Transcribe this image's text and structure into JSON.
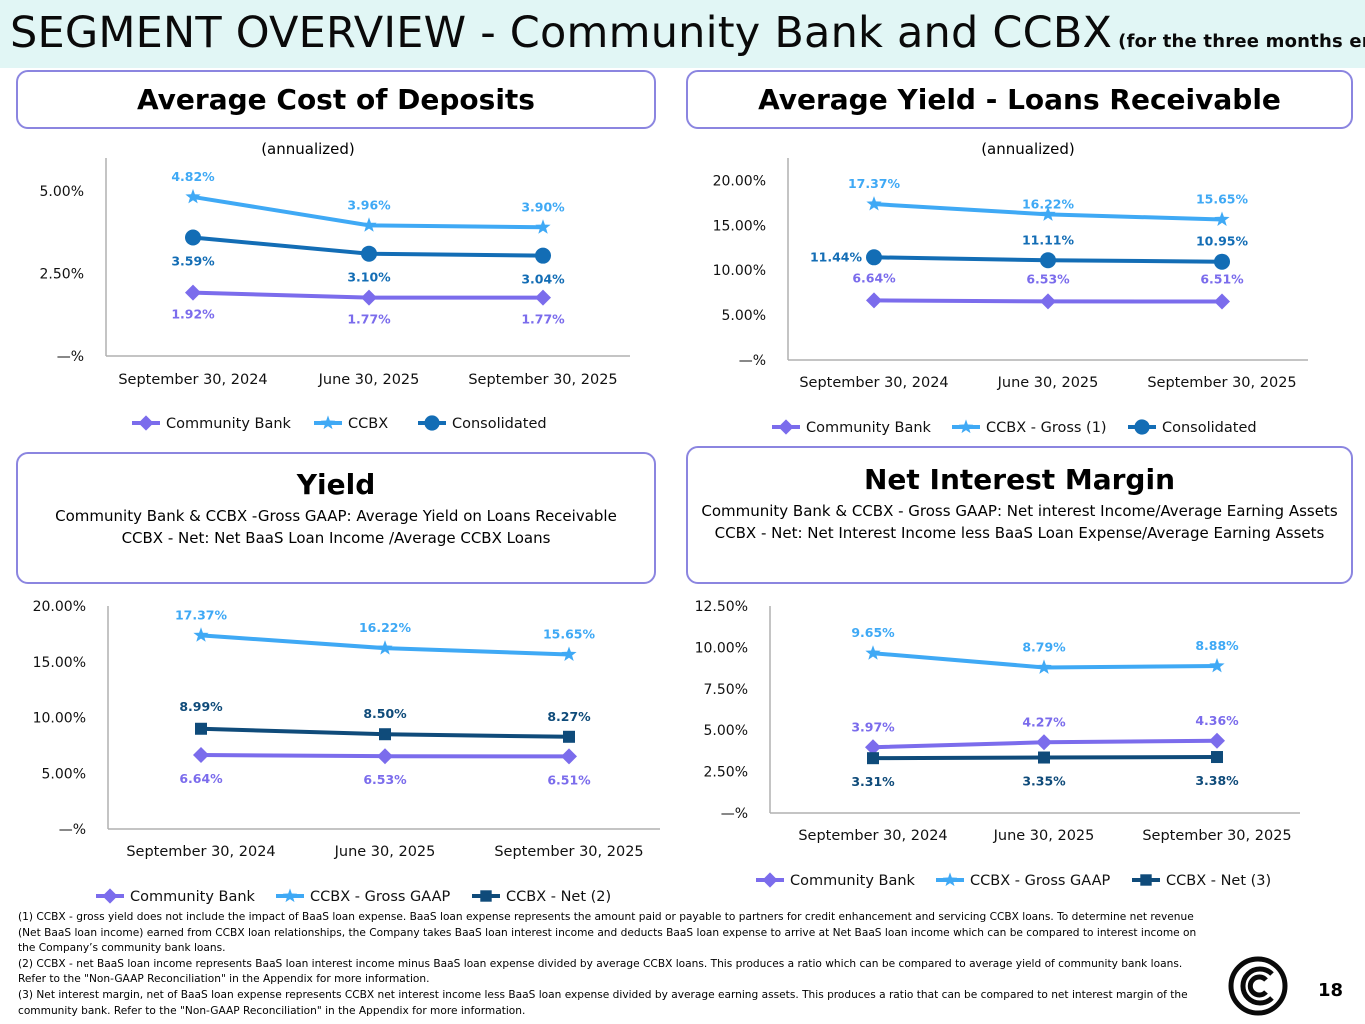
{
  "page": {
    "title": "SEGMENT OVERVIEW - Community Bank and CCBX",
    "subtitle": "(for the three months ended)",
    "page_number": "18"
  },
  "panels": {
    "deposits": {
      "title": "Average Cost of Deposits",
      "note": "(annualized)"
    },
    "loans": {
      "title": "Average Yield - Loans Receivable",
      "note": "(annualized)"
    },
    "yield": {
      "title": "Yield",
      "line1": "Community Bank & CCBX -Gross GAAP:  Average Yield on Loans Receivable",
      "line2": "CCBX - Net:  Net BaaS Loan Income /Average CCBX Loans"
    },
    "nim": {
      "title": "Net Interest Margin",
      "line1": "Community Bank & CCBX - Gross GAAP: Net interest Income/Average Earning Assets",
      "line2": "CCBX - Net:  Net Interest Income less BaaS Loan Expense/Average Earning Assets"
    }
  },
  "colors": {
    "purple": "#7b6cec",
    "lightblue": "#3fa9f5",
    "darkblue": "#136db5",
    "navy": "#0f4b7a",
    "box_border": "#8b85e0",
    "header_bg": "#e1f6f5"
  },
  "chart_data": [
    {
      "id": "deposits",
      "type": "line",
      "categories": [
        "September 30, 2024",
        "June 30, 2025",
        "September 30, 2025"
      ],
      "ylim": [
        0,
        6.0
      ],
      "yticks": [
        0,
        2.5,
        5.0
      ],
      "ytick_labels": [
        "—%",
        "2.50%",
        "5.00%"
      ],
      "series": [
        {
          "name": "Community Bank",
          "marker": "diamond",
          "color": "#7b6cec",
          "values": [
            1.92,
            1.77,
            1.77
          ],
          "labels": [
            "1.92%",
            "1.77%",
            "1.77%"
          ]
        },
        {
          "name": "CCBX",
          "marker": "star",
          "color": "#3fa9f5",
          "values": [
            4.82,
            3.96,
            3.9
          ],
          "labels": [
            "4.82%",
            "3.96%",
            "3.90%"
          ]
        },
        {
          "name": "Consolidated",
          "marker": "circle",
          "color": "#136db5",
          "values": [
            3.59,
            3.1,
            3.04
          ],
          "labels": [
            "3.59%",
            "3.10%",
            "3.04%"
          ]
        }
      ]
    },
    {
      "id": "loans",
      "type": "line",
      "categories": [
        "September 30, 2024",
        "June 30, 2025",
        "September 30, 2025"
      ],
      "ylim": [
        0,
        22.5
      ],
      "yticks": [
        0,
        5,
        10,
        15,
        20
      ],
      "ytick_labels": [
        "—%",
        "5.00%",
        "10.00%",
        "15.00%",
        "20.00%"
      ],
      "series": [
        {
          "name": "Community Bank",
          "marker": "diamond",
          "color": "#7b6cec",
          "values": [
            6.64,
            6.53,
            6.51
          ],
          "labels": [
            "6.64%",
            "6.53%",
            "6.51%"
          ]
        },
        {
          "name": "CCBX - Gross (1)",
          "marker": "star",
          "color": "#3fa9f5",
          "values": [
            17.37,
            16.22,
            15.65
          ],
          "labels": [
            "17.37%",
            "16.22%",
            "15.65%"
          ]
        },
        {
          "name": "Consolidated",
          "marker": "circle",
          "color": "#136db5",
          "values": [
            11.44,
            11.11,
            10.95
          ],
          "labels": [
            "11.44%",
            "11.11%",
            "10.95%"
          ]
        }
      ]
    },
    {
      "id": "yield",
      "type": "line",
      "categories": [
        "September 30, 2024",
        "June 30, 2025",
        "September 30, 2025"
      ],
      "ylim": [
        0,
        20.0
      ],
      "yticks": [
        0,
        5,
        10,
        15,
        20
      ],
      "ytick_labels": [
        "—%",
        "5.00%",
        "10.00%",
        "15.00%",
        "20.00%"
      ],
      "series": [
        {
          "name": "Community Bank",
          "marker": "diamond",
          "color": "#7b6cec",
          "values": [
            6.64,
            6.53,
            6.51
          ],
          "labels": [
            "6.64%",
            "6.53%",
            "6.51%"
          ]
        },
        {
          "name": "CCBX - Gross GAAP",
          "marker": "star",
          "color": "#3fa9f5",
          "values": [
            17.37,
            16.22,
            15.65
          ],
          "labels": [
            "17.37%",
            "16.22%",
            "15.65%"
          ]
        },
        {
          "name": "CCBX - Net (2)",
          "marker": "square",
          "color": "#0f4b7a",
          "values": [
            8.99,
            8.5,
            8.27
          ],
          "labels": [
            "8.99%",
            "8.50%",
            "8.27%"
          ]
        }
      ]
    },
    {
      "id": "nim",
      "type": "line",
      "categories": [
        "September 30, 2024",
        "June 30, 2025",
        "September 30, 2025"
      ],
      "ylim": [
        0,
        12.5
      ],
      "yticks": [
        0,
        2.5,
        5,
        7.5,
        10,
        12.5
      ],
      "ytick_labels": [
        "—%",
        "2.50%",
        "5.00%",
        "7.50%",
        "10.00%",
        "12.50%"
      ],
      "series": [
        {
          "name": "Community Bank",
          "marker": "diamond",
          "color": "#7b6cec",
          "values": [
            3.97,
            4.27,
            4.36
          ],
          "labels": [
            "3.97%",
            "4.27%",
            "4.36%"
          ]
        },
        {
          "name": "CCBX - Gross GAAP",
          "marker": "star",
          "color": "#3fa9f5",
          "values": [
            9.65,
            8.79,
            8.88
          ],
          "labels": [
            "9.65%",
            "8.79%",
            "8.88%"
          ]
        },
        {
          "name": "CCBX - Net (3)",
          "marker": "square",
          "color": "#0f4b7a",
          "values": [
            3.31,
            3.35,
            3.38
          ],
          "labels": [
            "3.31%",
            "3.35%",
            "3.38%"
          ]
        }
      ]
    }
  ],
  "footnotes": [
    "(1) CCBX - gross yield does not include the impact of BaaS loan expense.  BaaS loan expense represents the amount paid or payable to partners for credit enhancement and servicing CCBX loans.  To determine net revenue (Net BaaS loan income) earned from CCBX loan relationships, the Company takes BaaS loan interest income and deducts BaaS loan expense to arrive at Net BaaS loan income which can be compared to interest income on the Company’s community bank loans.",
    "(2) CCBX - net BaaS loan income represents BaaS loan interest income minus BaaS loan expense divided by average CCBX loans.  This produces a ratio which can be compared to average yield of community bank loans. Refer to the \"Non-GAAP Reconciliation\" in the Appendix for more information.",
    "(3)  Net interest margin, net of BaaS loan expense represents CCBX net interest income less BaaS loan expense divided by average earning assets.  This produces a ratio that can be compared to net interest margin of the community bank.  Refer to the \"Non-GAAP Reconciliation\" in the Appendix for more information."
  ]
}
